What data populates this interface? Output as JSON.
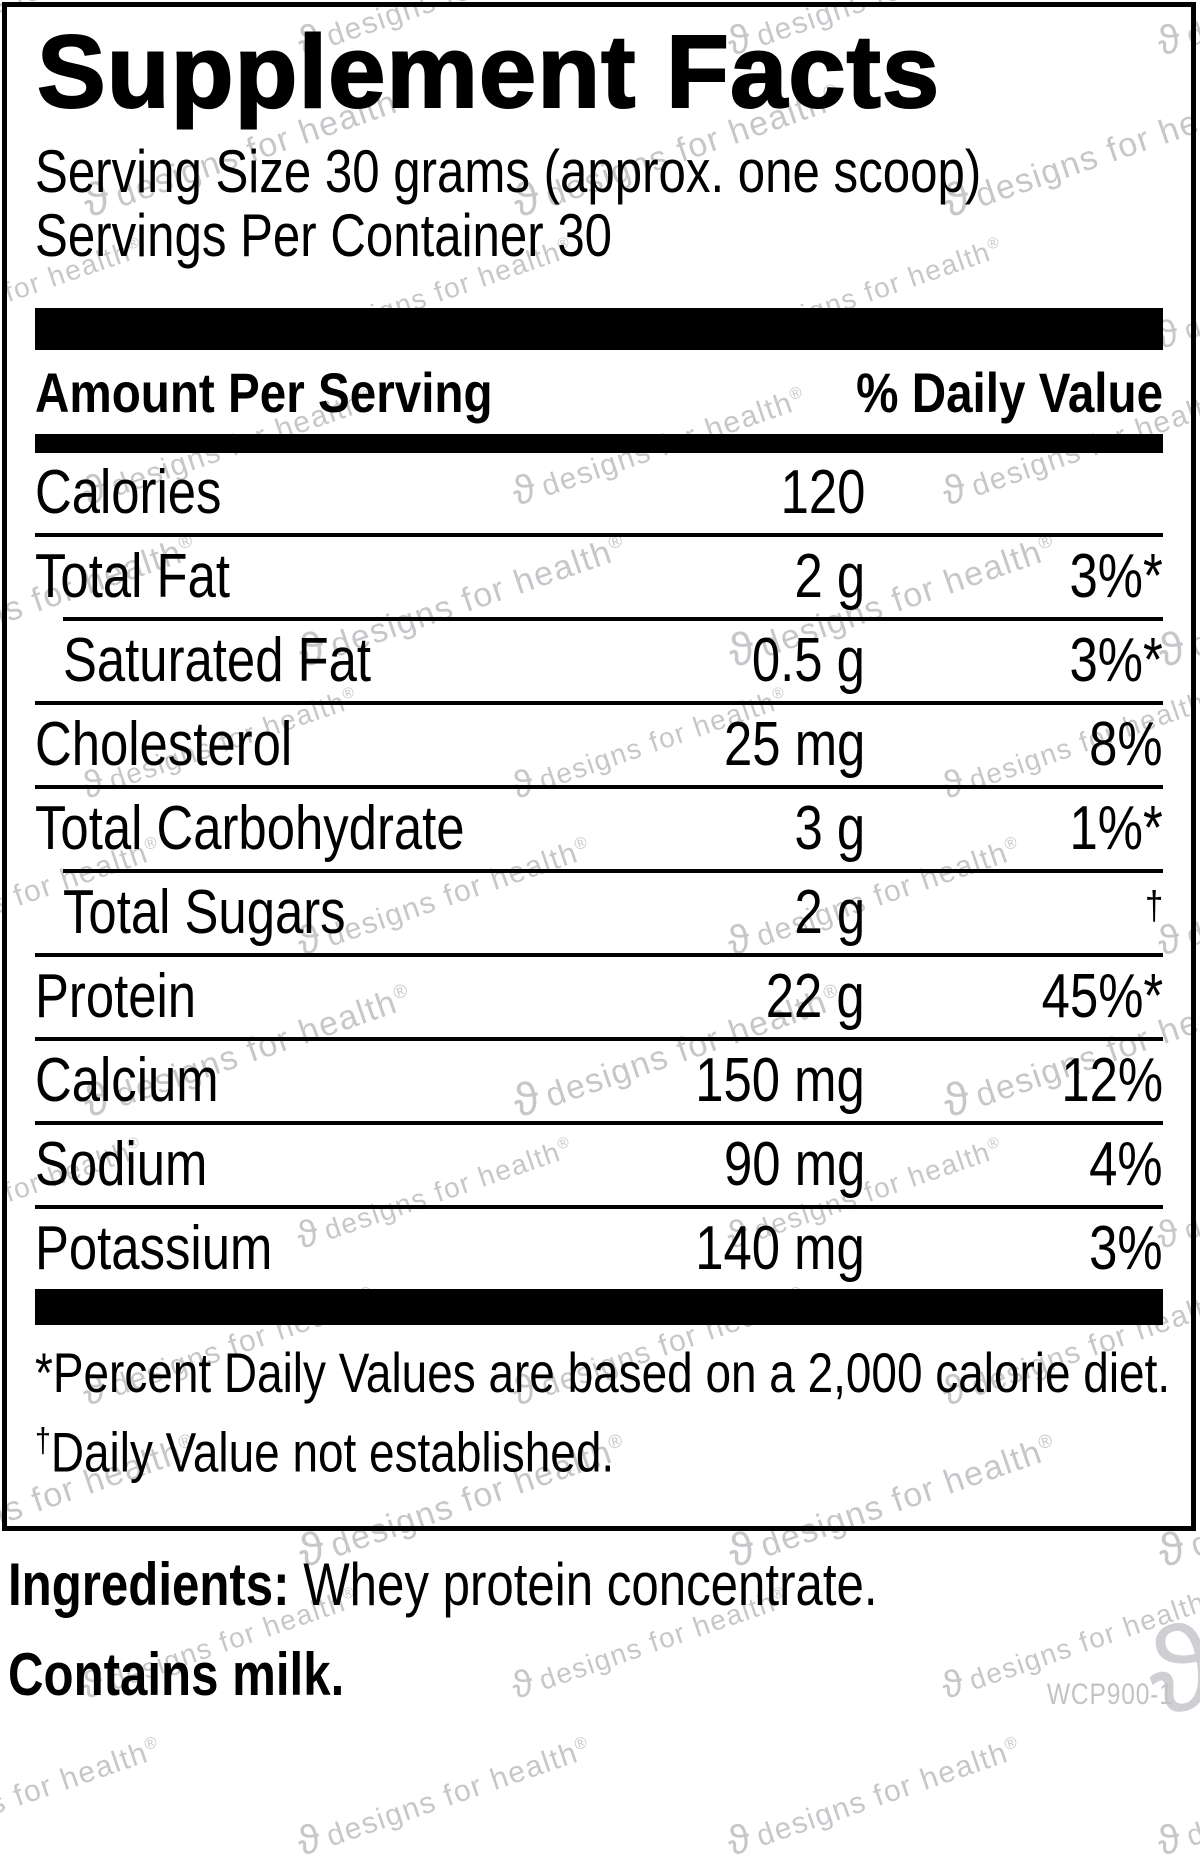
{
  "title": "Supplement Facts",
  "serving": {
    "size": "Serving Size 30 grams (approx. one scoop)",
    "per_container": "Servings Per Container 30"
  },
  "table": {
    "amount_header": "Amount Per Serving",
    "dv_header": "% Daily Value",
    "rows": [
      {
        "label": "Calories",
        "amount": "120",
        "dv": "",
        "sub": false,
        "sep_above": "none"
      },
      {
        "label": "Total Fat",
        "amount": "2 g",
        "dv": "3%*",
        "sub": false,
        "sep_above": "full"
      },
      {
        "label": "Saturated Fat",
        "amount": "0.5 g",
        "dv": "3%*",
        "sub": true,
        "sep_above": "indent"
      },
      {
        "label": "Cholesterol",
        "amount": "25 mg",
        "dv": "8%",
        "sub": false,
        "sep_above": "full"
      },
      {
        "label": "Total Carbohydrate",
        "amount": "3 g",
        "dv": "1%*",
        "sub": false,
        "sep_above": "full"
      },
      {
        "label": "Total Sugars",
        "amount": "2 g",
        "dv": "†",
        "dv_sup": true,
        "sub": true,
        "sep_above": "indent"
      },
      {
        "label": "Protein",
        "amount": "22 g",
        "dv": "45%*",
        "sub": false,
        "sep_above": "full"
      },
      {
        "label": "Calcium",
        "amount": "150 mg",
        "dv": "12%",
        "sub": false,
        "sep_above": "full"
      },
      {
        "label": "Sodium",
        "amount": "90 mg",
        "dv": "4%",
        "sub": false,
        "sep_above": "full"
      },
      {
        "label": "Potassium",
        "amount": "140 mg",
        "dv": "3%",
        "sub": false,
        "sep_above": "full"
      }
    ]
  },
  "footnotes": [
    {
      "marker": "*",
      "text": "Percent Daily Values are based on a 2,000 calorie diet."
    },
    {
      "marker": "†",
      "text": "Daily Value not established."
    }
  ],
  "ingredients_label": "Ingredients:",
  "ingredients_text": " Whey protein concentrate.",
  "allergen": "Contains milk.",
  "footer_code": "WCP900-1",
  "watermark": {
    "text": "designs for health",
    "registered": "®",
    "logo_glyph": "ϑ",
    "color": "#c7c7cb"
  },
  "colors": {
    "ink": "#000000",
    "background": "#ffffff",
    "watermark_gray": "#c7c7cb",
    "code_gray": "#c3c3c7"
  }
}
